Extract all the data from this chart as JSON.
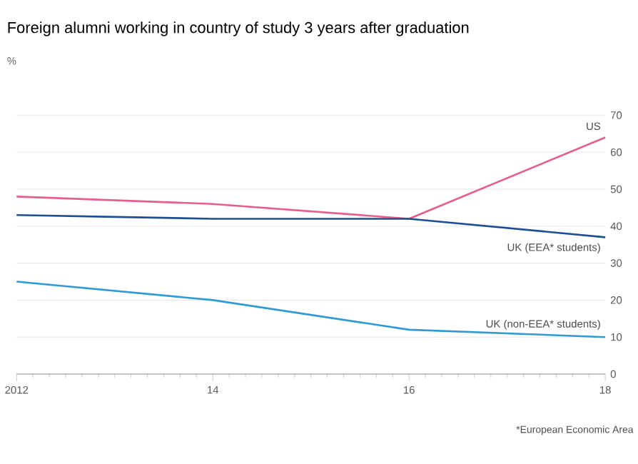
{
  "chart_data": {
    "type": "line",
    "title": "Foreign alumni working in country of study 3 years after graduation",
    "ylabel": "%",
    "x": [
      2012,
      2013,
      2014,
      2015,
      2016,
      2017,
      2018
    ],
    "series": [
      {
        "name": "US",
        "color": "#e95d8c",
        "values": [
          48,
          47,
          46,
          44,
          42,
          53,
          64
        ]
      },
      {
        "name": "UK (EEA* students)",
        "color": "#1c4f94",
        "values": [
          43,
          42.5,
          42,
          42,
          42,
          39.5,
          37
        ]
      },
      {
        "name": "UK (non-EEA* students)",
        "color": "#2e9ad6",
        "values": [
          25,
          22.5,
          20,
          16,
          12,
          11,
          10
        ]
      }
    ],
    "xlim": [
      2012,
      2018
    ],
    "ylim": [
      0,
      70
    ],
    "xticks": [
      {
        "value": 2012,
        "label": "2012"
      },
      {
        "value": 2014,
        "label": "14"
      },
      {
        "value": 2016,
        "label": "16"
      },
      {
        "value": 2018,
        "label": "18"
      }
    ],
    "yticks": [
      0,
      10,
      20,
      30,
      40,
      50,
      60,
      70
    ],
    "grid": "y",
    "marker": "none",
    "line_style": "solid",
    "annotations": [
      "*European Economic Area"
    ]
  }
}
